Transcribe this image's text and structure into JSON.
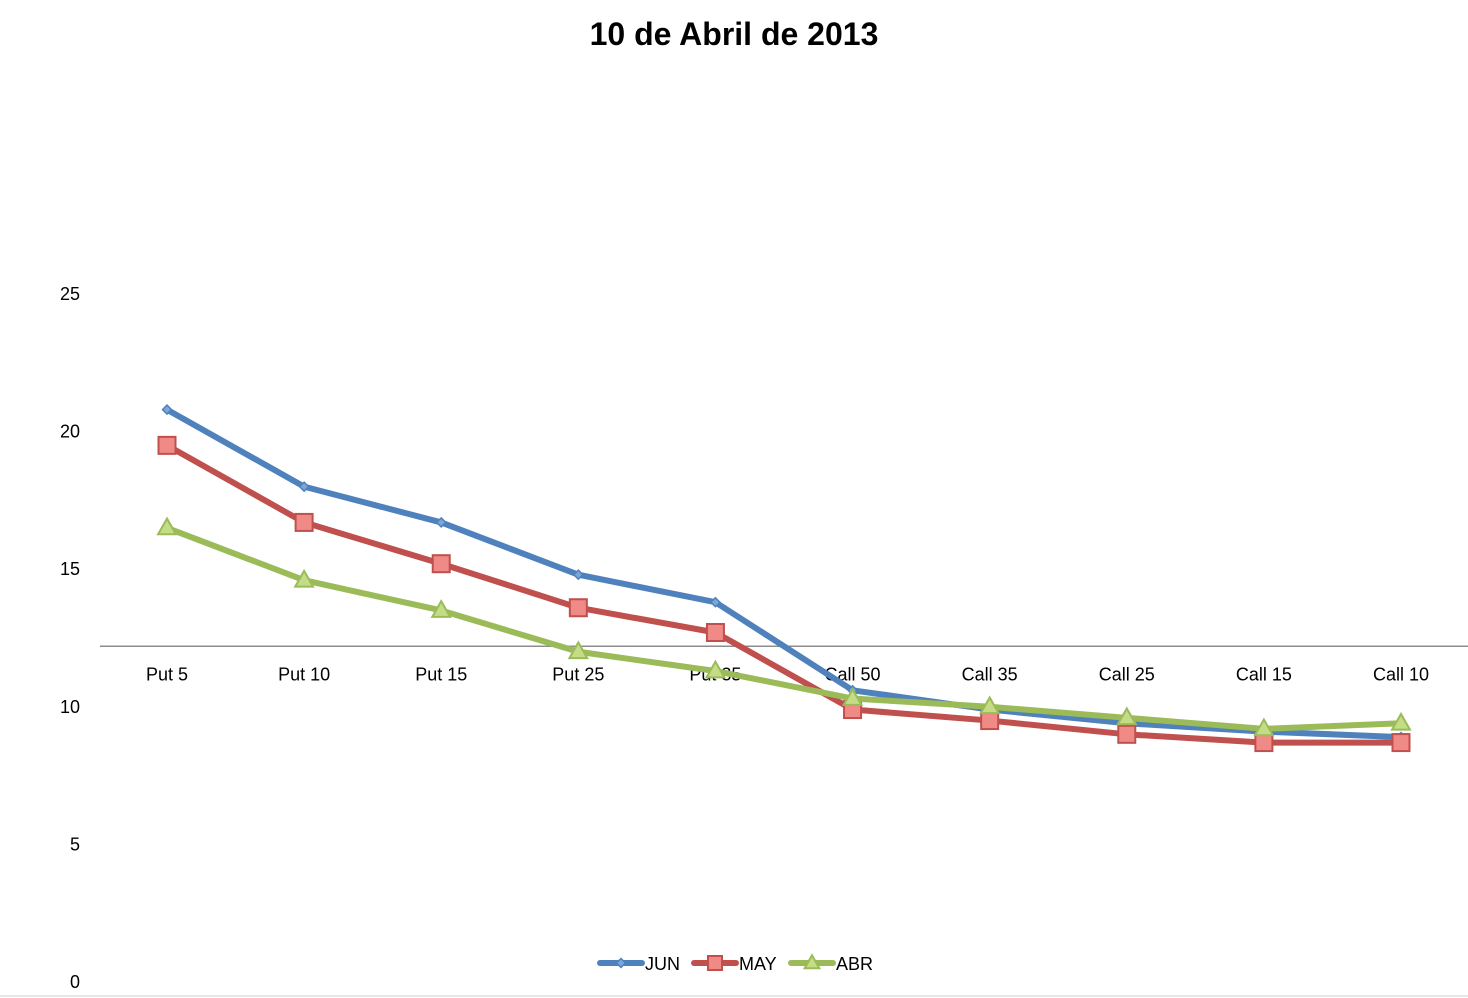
{
  "chart_data": {
    "type": "line",
    "title": "10 de Abril de 2013",
    "categories": [
      "Put 5",
      "Put 10",
      "Put 15",
      "Put 25",
      "Put 35",
      "Call 50",
      "Call 35",
      "Call 25",
      "Call 15",
      "Call 10"
    ],
    "y_ticks": [
      "0",
      "5",
      "10",
      "15",
      "20",
      "25"
    ],
    "ylim": [
      0,
      25
    ],
    "category_axis_value": 12.2,
    "grid": false,
    "legend": "bottom",
    "series": [
      {
        "name": "JUN",
        "color": "#4f81bd",
        "marker": "diamond",
        "values": [
          20.8,
          18.0,
          16.7,
          14.8,
          13.8,
          10.6,
          9.9,
          9.4,
          9.1,
          8.9
        ]
      },
      {
        "name": "MAY",
        "color": "#c0504d",
        "marker": "square",
        "values": [
          19.5,
          16.7,
          15.2,
          13.6,
          12.7,
          9.9,
          9.5,
          9.0,
          8.7,
          8.7
        ]
      },
      {
        "name": "ABR",
        "color": "#9bbb59",
        "marker": "triangle",
        "values": [
          16.5,
          14.6,
          13.5,
          12.0,
          11.3,
          10.3,
          10.0,
          9.6,
          9.2,
          9.4
        ]
      }
    ]
  }
}
